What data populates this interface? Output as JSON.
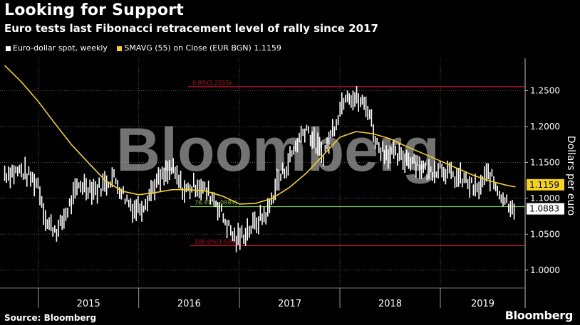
{
  "header": {
    "title": "Looking for Support",
    "subtitle": "Euro tests last Fibonacci retracement level of rally since 2017"
  },
  "legend": {
    "spot_label": "Euro-dollar spot, weekly",
    "sma_label": "SMAVG (55)  on Close (EUR BGN) 1.1159"
  },
  "footer": {
    "source": "Source: Bloomberg",
    "brand": "Bloomberg"
  },
  "watermark": "Bloomberg",
  "colors": {
    "background": "#000000",
    "spot": "#ffffff",
    "sma": "#f5d21b",
    "fib_red": "#c8102e",
    "fib_green": "#7cc242",
    "grid": "#555555"
  },
  "chart_data": {
    "type": "line",
    "ylabel": "Dollars per euro",
    "ylim": [
      0.975,
      1.295
    ],
    "yticks": [
      "1.0000",
      "1.0500",
      "1.1000",
      "1.1500",
      "1.2000",
      "1.2500"
    ],
    "x_labels": [
      "2015",
      "2016",
      "2017",
      "2018",
      "2019"
    ],
    "grid": true,
    "fib_levels": [
      {
        "label": "0.0%(1.2555)",
        "value": 1.2555,
        "color": "red"
      },
      {
        "label": "76.4%(1.0884)",
        "value": 1.0884,
        "color": "green"
      },
      {
        "label": "100.0%(1.0341)",
        "value": 1.0341,
        "color": "red"
      }
    ],
    "last_values": [
      {
        "label": "1.1159",
        "value": 1.1159,
        "series": "SMAVG (55)"
      },
      {
        "label": "1.0883",
        "value": 1.0883,
        "series": "Euro-dollar spot"
      }
    ],
    "series": [
      {
        "name": "Euro-dollar spot, weekly",
        "x": [
          "2014-09-01",
          "2014-11-01",
          "2015-01-01",
          "2015-02-01",
          "2015-03-15",
          "2015-04-15",
          "2015-06-01",
          "2015-08-01",
          "2015-10-01",
          "2015-11-15",
          "2015-12-15",
          "2016-01-15",
          "2016-03-01",
          "2016-05-01",
          "2016-06-15",
          "2016-08-01",
          "2016-10-01",
          "2016-11-15",
          "2016-12-20",
          "2017-01-15",
          "2017-03-01",
          "2017-04-15",
          "2017-05-15",
          "2017-06-15",
          "2017-08-01",
          "2017-09-01",
          "2017-10-01",
          "2017-11-01",
          "2017-12-01",
          "2018-01-25",
          "2018-02-15",
          "2018-03-15",
          "2018-04-15",
          "2018-05-15",
          "2018-06-15",
          "2018-08-15",
          "2018-10-01",
          "2018-11-15",
          "2019-01-01",
          "2019-02-15",
          "2019-04-01",
          "2019-05-15",
          "2019-06-25",
          "2019-08-01",
          "2019-09-01",
          "2019-10-01"
        ],
        "y": [
          1.135,
          1.138,
          1.12,
          1.065,
          1.055,
          1.082,
          1.12,
          1.112,
          1.13,
          1.1,
          1.085,
          1.09,
          1.12,
          1.14,
          1.11,
          1.12,
          1.1,
          1.065,
          1.041,
          1.05,
          1.065,
          1.082,
          1.12,
          1.14,
          1.18,
          1.2,
          1.175,
          1.16,
          1.19,
          1.25,
          1.24,
          1.235,
          1.225,
          1.175,
          1.165,
          1.155,
          1.155,
          1.135,
          1.145,
          1.13,
          1.125,
          1.11,
          1.135,
          1.11,
          1.095,
          1.088
        ]
      },
      {
        "name": "SMAVG (55)",
        "x": [
          "2014-09-01",
          "2014-11-01",
          "2015-01-01",
          "2015-03-01",
          "2015-05-01",
          "2015-07-01",
          "2015-09-01",
          "2015-11-01",
          "2016-01-01",
          "2016-03-01",
          "2016-05-01",
          "2016-07-01",
          "2016-09-01",
          "2016-11-01",
          "2017-01-01",
          "2017-03-01",
          "2017-05-01",
          "2017-07-01",
          "2017-09-01",
          "2017-11-01",
          "2018-01-01",
          "2018-03-01",
          "2018-05-01",
          "2018-07-01",
          "2018-09-01",
          "2018-11-01",
          "2019-01-01",
          "2019-03-01",
          "2019-05-01",
          "2019-07-01",
          "2019-09-01",
          "2019-10-01"
        ],
        "y": [
          1.285,
          1.262,
          1.235,
          1.205,
          1.175,
          1.15,
          1.125,
          1.11,
          1.105,
          1.108,
          1.112,
          1.112,
          1.11,
          1.103,
          1.092,
          1.093,
          1.1,
          1.115,
          1.135,
          1.16,
          1.185,
          1.193,
          1.19,
          1.183,
          1.172,
          1.162,
          1.152,
          1.142,
          1.132,
          1.124,
          1.118,
          1.1159
        ]
      }
    ]
  }
}
